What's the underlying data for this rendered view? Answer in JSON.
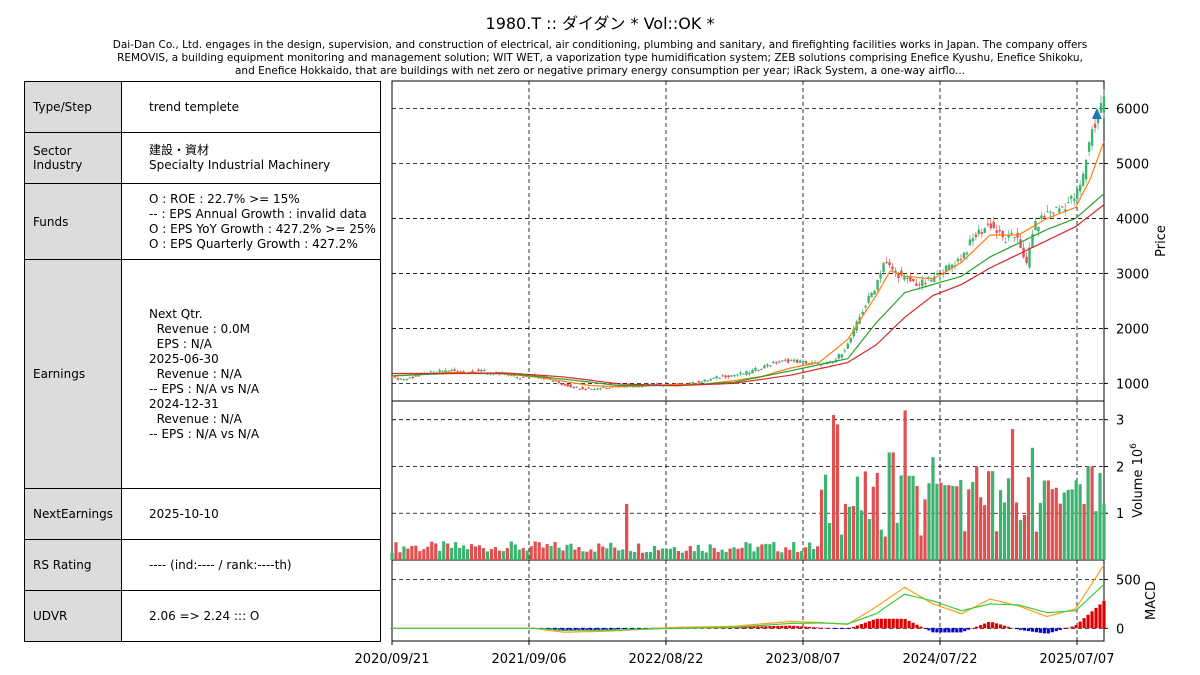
{
  "title": "1980.T :: ダイダン * Vol::OK *",
  "description": "Dai-Dan Co., Ltd. engages in the design, supervision, and construction of electrical, air conditioning, plumbing and sanitary, and firefighting facilities works in Japan. The company offers REMOVIS, a building equipment monitoring and management solution; WIT WET, a vaporization type humidification system; ZEB solutions comprising Enefice Kyushu, Enefice Shikoku, and Enefice Hokkaido, that are buildings with net zero or negative primary energy consumption per year; iRack System, a one-way airflo...",
  "info": {
    "type_label": "Type/Step",
    "type_value": "trend templete",
    "sector_label": "Sector\nIndustry",
    "sector_value": "建設・資材\nSpecialty Industrial Machinery",
    "funds_label": "Funds",
    "funds_value": "O : ROE : 22.7% >= 15%\n-- : EPS Annual Growth : invalid data\nO : EPS YoY Growth : 427.2% >= 25%\nO : EPS Quarterly Growth : 427.2%",
    "earnings_label": "Earnings",
    "earnings_value": "Next Qtr.\n  Revenue : 0.0M\n  EPS : N/A\n2025-06-30\n  Revenue : N/A\n-- EPS : N/A vs N/A\n2024-12-31\n  Revenue : N/A\n-- EPS : N/A vs N/A",
    "next_label": "NextEarnings",
    "next_value": "2025-10-10",
    "rs_label": "RS Rating",
    "rs_value": "---- (ind:---- / rank:----th)",
    "udvr_label": "UDVR",
    "udvr_value": "2.06 => 2.24 ::: O"
  },
  "chart_data": {
    "type": "line",
    "x_dates": [
      "2020/09/21",
      "2021/09/06",
      "2022/08/22",
      "2023/08/07",
      "2024/07/22",
      "2025/07/07"
    ],
    "price": {
      "ylabel": "Price",
      "ylim": [
        680,
        6500
      ],
      "ticks": [
        1000,
        2000,
        3000,
        4000,
        5000,
        6000
      ],
      "series": [
        {
          "color": "#ff7f0e",
          "points": [
            [
              0,
              1130
            ],
            [
              0.04,
              1160
            ],
            [
              0.08,
              1200
            ],
            [
              0.12,
              1190
            ],
            [
              0.16,
              1170
            ],
            [
              0.2,
              1120
            ],
            [
              0.24,
              1040
            ],
            [
              0.28,
              960
            ],
            [
              0.32,
              940
            ],
            [
              0.36,
              960
            ],
            [
              0.4,
              980
            ],
            [
              0.44,
              990
            ],
            [
              0.48,
              1050
            ],
            [
              0.52,
              1130
            ],
            [
              0.56,
              1280
            ],
            [
              0.6,
              1380
            ],
            [
              0.64,
              1800
            ],
            [
              0.68,
              2600
            ],
            [
              0.7,
              3050
            ],
            [
              0.72,
              2950
            ],
            [
              0.76,
              2900
            ],
            [
              0.8,
              3200
            ],
            [
              0.84,
              3700
            ],
            [
              0.88,
              3700
            ],
            [
              0.92,
              4000
            ],
            [
              0.96,
              4200
            ],
            [
              0.98,
              4700
            ],
            [
              1.0,
              5400
            ]
          ]
        },
        {
          "color": "#2ca02c",
          "points": [
            [
              0,
              1140
            ],
            [
              0.08,
              1180
            ],
            [
              0.16,
              1180
            ],
            [
              0.24,
              1080
            ],
            [
              0.32,
              960
            ],
            [
              0.4,
              960
            ],
            [
              0.48,
              1020
            ],
            [
              0.56,
              1230
            ],
            [
              0.64,
              1450
            ],
            [
              0.68,
              2100
            ],
            [
              0.72,
              2650
            ],
            [
              0.76,
              2800
            ],
            [
              0.8,
              2950
            ],
            [
              0.84,
              3300
            ],
            [
              0.88,
              3550
            ],
            [
              0.92,
              3800
            ],
            [
              0.96,
              4000
            ],
            [
              1.0,
              4450
            ]
          ]
        },
        {
          "color": "#d62728",
          "points": [
            [
              0,
              1180
            ],
            [
              0.08,
              1180
            ],
            [
              0.16,
              1190
            ],
            [
              0.24,
              1120
            ],
            [
              0.32,
              990
            ],
            [
              0.4,
              960
            ],
            [
              0.48,
              1000
            ],
            [
              0.56,
              1150
            ],
            [
              0.64,
              1380
            ],
            [
              0.68,
              1700
            ],
            [
              0.72,
              2200
            ],
            [
              0.76,
              2600
            ],
            [
              0.8,
              2800
            ],
            [
              0.84,
              3100
            ],
            [
              0.88,
              3350
            ],
            [
              0.92,
              3600
            ],
            [
              0.96,
              3850
            ],
            [
              1.0,
              4250
            ]
          ]
        }
      ],
      "close": [
        [
          0,
          1100
        ],
        [
          0.02,
          1080
        ],
        [
          0.04,
          1160
        ],
        [
          0.06,
          1200
        ],
        [
          0.08,
          1240
        ],
        [
          0.1,
          1200
        ],
        [
          0.12,
          1230
        ],
        [
          0.14,
          1180
        ],
        [
          0.16,
          1170
        ],
        [
          0.18,
          1100
        ],
        [
          0.2,
          1150
        ],
        [
          0.22,
          1080
        ],
        [
          0.24,
          980
        ],
        [
          0.26,
          920
        ],
        [
          0.28,
          900
        ],
        [
          0.3,
          930
        ],
        [
          0.32,
          960
        ],
        [
          0.34,
          950
        ],
        [
          0.36,
          980
        ],
        [
          0.38,
          970
        ],
        [
          0.4,
          980
        ],
        [
          0.42,
          1000
        ],
        [
          0.44,
          1050
        ],
        [
          0.46,
          1120
        ],
        [
          0.48,
          1150
        ],
        [
          0.5,
          1200
        ],
        [
          0.52,
          1300
        ],
        [
          0.54,
          1380
        ],
        [
          0.56,
          1420
        ],
        [
          0.58,
          1380
        ],
        [
          0.6,
          1350
        ],
        [
          0.62,
          1380
        ],
        [
          0.64,
          1700
        ],
        [
          0.66,
          2300
        ],
        [
          0.68,
          2800
        ],
        [
          0.69,
          3200
        ],
        [
          0.7,
          3100
        ],
        [
          0.72,
          2900
        ],
        [
          0.74,
          2800
        ],
        [
          0.76,
          2900
        ],
        [
          0.78,
          3100
        ],
        [
          0.8,
          3300
        ],
        [
          0.82,
          3700
        ],
        [
          0.84,
          3900
        ],
        [
          0.86,
          3600
        ],
        [
          0.88,
          3700
        ],
        [
          0.89,
          3050
        ],
        [
          0.9,
          3800
        ],
        [
          0.92,
          4100
        ],
        [
          0.94,
          4200
        ],
        [
          0.96,
          4400
        ],
        [
          0.97,
          4700
        ],
        [
          0.98,
          5500
        ],
        [
          0.99,
          5800
        ],
        [
          1.0,
          6250
        ]
      ],
      "marker": {
        "x": 0.99,
        "y": 5900,
        "color": "#1f77b4"
      }
    },
    "volume": {
      "ylabel": "Volume 10^6",
      "ylim": [
        0,
        3.4
      ],
      "ticks": [
        1,
        2,
        3
      ],
      "spikes": [
        [
          0.03,
          0.3
        ],
        [
          0.15,
          0.2
        ],
        [
          0.33,
          1.2
        ],
        [
          0.62,
          3.1
        ],
        [
          0.625,
          2.9
        ],
        [
          0.7,
          2.3
        ],
        [
          0.72,
          3.2
        ],
        [
          0.73,
          1.8
        ],
        [
          0.76,
          2.2
        ],
        [
          0.78,
          1.6
        ],
        [
          0.82,
          2.0
        ],
        [
          0.84,
          1.9
        ],
        [
          0.87,
          2.8
        ],
        [
          0.9,
          2.4
        ],
        [
          0.92,
          1.7
        ],
        [
          0.95,
          1.5
        ],
        [
          0.98,
          2.0
        ],
        [
          1.0,
          1.2
        ]
      ]
    },
    "macd": {
      "ylabel": "MACD",
      "ylim": [
        -130,
        700
      ],
      "ticks": [
        0,
        500
      ],
      "line": [
        [
          0,
          0
        ],
        [
          0.2,
          0
        ],
        [
          0.24,
          -40
        ],
        [
          0.3,
          -30
        ],
        [
          0.4,
          10
        ],
        [
          0.48,
          20
        ],
        [
          0.56,
          70
        ],
        [
          0.6,
          60
        ],
        [
          0.64,
          40
        ],
        [
          0.68,
          220
        ],
        [
          0.72,
          420
        ],
        [
          0.76,
          250
        ],
        [
          0.8,
          150
        ],
        [
          0.84,
          300
        ],
        [
          0.88,
          230
        ],
        [
          0.92,
          120
        ],
        [
          0.96,
          200
        ],
        [
          1.0,
          650
        ]
      ],
      "signal": [
        [
          0,
          0
        ],
        [
          0.2,
          0
        ],
        [
          0.24,
          -20
        ],
        [
          0.3,
          -20
        ],
        [
          0.4,
          0
        ],
        [
          0.48,
          10
        ],
        [
          0.56,
          50
        ],
        [
          0.6,
          55
        ],
        [
          0.64,
          45
        ],
        [
          0.68,
          150
        ],
        [
          0.72,
          350
        ],
        [
          0.76,
          280
        ],
        [
          0.8,
          180
        ],
        [
          0.84,
          250
        ],
        [
          0.88,
          240
        ],
        [
          0.92,
          160
        ],
        [
          0.96,
          180
        ],
        [
          1.0,
          450
        ]
      ]
    }
  }
}
